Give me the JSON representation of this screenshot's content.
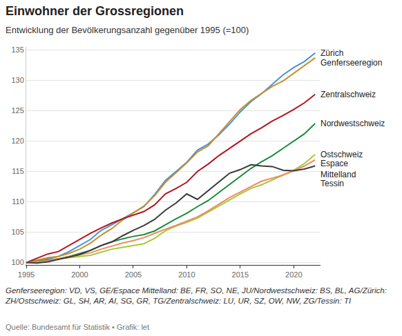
{
  "chart_data": {
    "type": "line",
    "title": "Einwohner der Grossregionen",
    "subtitle": "Entwicklung der Bevölkerungsanzahl gegenüber 1995 (=100)",
    "note": "Genferseeregion: VD, VS, GE/Espace Mittelland: BE, FR, SO, NE, JU/Nordwestschweiz: BS, BL, AG/Zürich: ZH/Ostschweiz: GL, SH, AR, AI, SG, GR, TG/Zentralschweiz: LU, UR, SZ, OW, NW, ZG/Tessin: TI",
    "source": "Quelle: Bundesamt für Statistik • Grafik: let",
    "x": [
      1995,
      1996,
      1997,
      1998,
      1999,
      2000,
      2001,
      2002,
      2003,
      2004,
      2005,
      2006,
      2007,
      2008,
      2009,
      2010,
      2011,
      2012,
      2013,
      2014,
      2015,
      2016,
      2017,
      2018,
      2019,
      2020,
      2021,
      2022
    ],
    "series": [
      {
        "name": "Zürich",
        "color": "#4a90d9",
        "values": [
          100,
          100.3,
          100.6,
          101,
          101.8,
          102.8,
          103.8,
          105.3,
          106.2,
          107.2,
          108.2,
          109.2,
          111.2,
          113.5,
          115,
          116.5,
          118.5,
          119.5,
          121,
          122.8,
          124.8,
          126.5,
          127.8,
          129.3,
          130.9,
          132.1,
          133.1,
          134.5
        ]
      },
      {
        "name": "Genferseeregion",
        "color": "#c8902a",
        "values": [
          100,
          100.4,
          100.8,
          101,
          101.5,
          102.2,
          103.2,
          104.5,
          105.6,
          107,
          108.2,
          109.3,
          111,
          113.2,
          114.8,
          116.4,
          118.2,
          119.2,
          121.2,
          123.2,
          125.2,
          126.7,
          127.9,
          129,
          129.9,
          131.2,
          132.5,
          133.7
        ]
      },
      {
        "name": "Zentralschweiz",
        "color": "#b3141e",
        "values": [
          100,
          100.7,
          101.4,
          101.8,
          102.8,
          103.8,
          104.8,
          105.7,
          106.5,
          107.2,
          107.8,
          108.4,
          109.5,
          111.3,
          112.2,
          113.2,
          115,
          116.2,
          117.6,
          118.8,
          120,
          121.2,
          122.2,
          123.3,
          124.2,
          125.2,
          126.3,
          127.7
        ]
      },
      {
        "name": "Nordwestschweiz",
        "color": "#1a8a3c",
        "values": [
          100,
          100.2,
          100.4,
          100.6,
          101,
          101.5,
          102,
          102.8,
          103.4,
          103.9,
          104.3,
          104.6,
          105.2,
          106.2,
          107.2,
          108.1,
          109.2,
          110.2,
          111.5,
          112.8,
          114.2,
          115.5,
          116.6,
          117.6,
          118.8,
          120,
          121.2,
          122.9
        ]
      },
      {
        "name": "Ostschweiz",
        "color": "#a6c93a",
        "values": [
          100,
          100.1,
          100.3,
          100.6,
          100.8,
          101,
          101.2,
          101.7,
          102.2,
          102.5,
          102.8,
          103.1,
          104,
          105.2,
          106,
          106.6,
          107.3,
          108.3,
          109.3,
          110.3,
          111.3,
          112.2,
          112.8,
          113.6,
          114.4,
          115.2,
          116.3,
          117.8
        ]
      },
      {
        "name": "Espace Mittelland",
        "color": "#f08a5d",
        "values": [
          100,
          100.1,
          100.3,
          100.6,
          101,
          101.3,
          101.6,
          102.2,
          102.7,
          103.2,
          103.6,
          104.1,
          104.8,
          105.5,
          106.1,
          106.8,
          107.5,
          108.5,
          109.6,
          110.7,
          111.6,
          112.5,
          113.4,
          113.9,
          114.4,
          115.1,
          115.9,
          116.9
        ]
      },
      {
        "name": "Tessin",
        "color": "#3a3a3a",
        "values": [
          100,
          99.9,
          100.1,
          100.5,
          100.9,
          101.3,
          102,
          102.8,
          103.4,
          104.4,
          105.3,
          106.1,
          107.1,
          108.6,
          109.8,
          111.3,
          110.4,
          111.8,
          113.3,
          114.7,
          115.3,
          116.1,
          115.9,
          115.8,
          115.2,
          115.1,
          115.4,
          115.9
        ]
      }
    ],
    "xlim": [
      1995,
      2022.5
    ],
    "xticks": [
      1995,
      2000,
      2005,
      2010,
      2015,
      2020
    ],
    "ylim": [
      99.6,
      135.5
    ],
    "yticks": [
      100,
      105,
      110,
      115,
      120,
      125,
      130,
      135
    ],
    "grid": true,
    "legend": "none"
  }
}
